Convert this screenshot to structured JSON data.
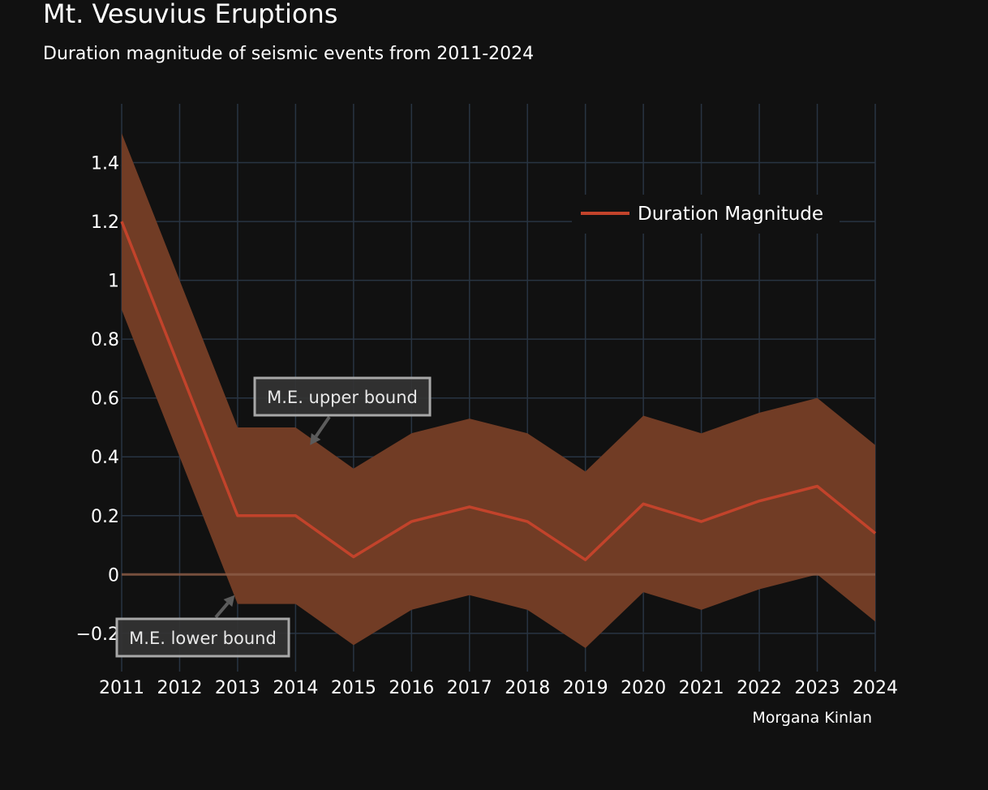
{
  "chart_data": {
    "type": "line",
    "title": "Mt. Vesuvius Eruptions",
    "subtitle": "Duration magnitude of seismic events from 2011-2024",
    "x": [
      2011,
      2012,
      2013,
      2014,
      2015,
      2016,
      2017,
      2018,
      2019,
      2020,
      2021,
      2022,
      2023,
      2024
    ],
    "series": [
      {
        "name": "Duration Magnitude",
        "values": [
          1.2,
          0.7,
          0.2,
          0.2,
          0.06,
          0.18,
          0.23,
          0.18,
          0.05,
          0.24,
          0.18,
          0.25,
          0.3,
          0.14
        ]
      }
    ],
    "upper_bound": [
      1.5,
      1.0,
      0.5,
      0.5,
      0.36,
      0.48,
      0.53,
      0.48,
      0.35,
      0.54,
      0.48,
      0.55,
      0.6,
      0.44
    ],
    "lower_bound": [
      0.9,
      0.4,
      -0.1,
      -0.1,
      -0.24,
      -0.12,
      -0.07,
      -0.12,
      -0.25,
      -0.06,
      -0.12,
      -0.05,
      0.0,
      -0.16
    ],
    "ylim": [
      -0.33,
      1.6
    ],
    "y_ticks": [
      -0.2,
      0,
      0.2,
      0.4,
      0.6,
      0.8,
      1,
      1.2,
      1.4
    ],
    "y_tick_labels": [
      "−0.2",
      "0",
      "0.2",
      "0.4",
      "0.6",
      "0.8",
      "1",
      "1.2",
      "1.4"
    ],
    "x_tick_labels": [
      "2011",
      "2012",
      "2013",
      "2014",
      "2015",
      "2016",
      "2017",
      "2018",
      "2019",
      "2020",
      "2021",
      "2022",
      "2023",
      "2024"
    ],
    "grid": true,
    "legend_position": "top-right",
    "annotations": [
      {
        "text": "M.E. upper bound",
        "x": 2014.25,
        "y": 0.44
      },
      {
        "text": "M.E. lower bound",
        "x": 2012.95,
        "y": -0.07
      }
    ],
    "credit": "Morgana Kinlan",
    "colors": {
      "background": "#111111",
      "grid": "#283442",
      "band": "#713c25",
      "line": "#c2432b",
      "zero_line": "#8a5a45"
    }
  }
}
